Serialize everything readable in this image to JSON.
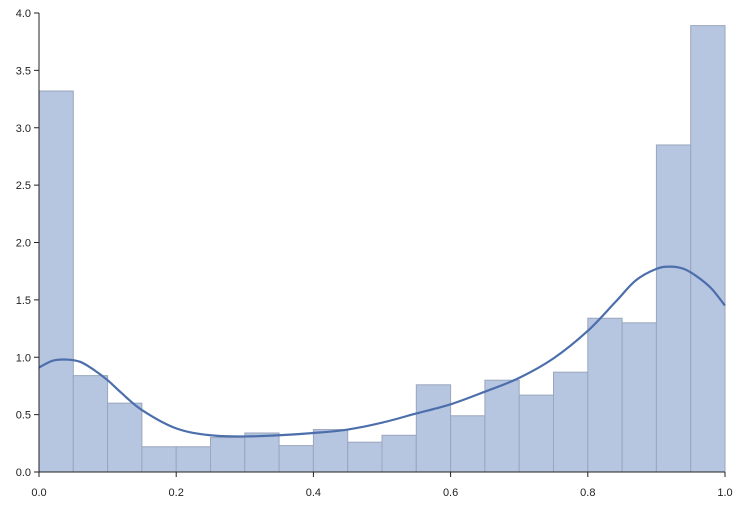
{
  "chart_data": {
    "type": "bar",
    "subtype": "histogram-with-density-curve",
    "title": "",
    "xlabel": "",
    "ylabel": "",
    "xlim": [
      0.0,
      1.0
    ],
    "ylim": [
      0.0,
      4.0
    ],
    "grid": false,
    "legend": "none",
    "colors": {
      "bar_fill": "#b6c5e0",
      "bar_edge": "#9aa6bd",
      "curve": "#4c6fac",
      "axis": "#222222"
    },
    "x_ticks": [
      "0.0",
      "0.2",
      "0.4",
      "0.6",
      "0.8",
      "1.0"
    ],
    "y_ticks": [
      "0.0",
      "0.5",
      "1.0",
      "1.5",
      "2.0",
      "2.5",
      "3.0",
      "3.5",
      "4.0"
    ],
    "bins": [
      {
        "start": 0.0,
        "end": 0.05,
        "value": 3.32
      },
      {
        "start": 0.05,
        "end": 0.1,
        "value": 0.84
      },
      {
        "start": 0.1,
        "end": 0.15,
        "value": 0.6
      },
      {
        "start": 0.15,
        "end": 0.2,
        "value": 0.22
      },
      {
        "start": 0.2,
        "end": 0.25,
        "value": 0.22
      },
      {
        "start": 0.25,
        "end": 0.3,
        "value": 0.3
      },
      {
        "start": 0.3,
        "end": 0.35,
        "value": 0.34
      },
      {
        "start": 0.35,
        "end": 0.4,
        "value": 0.23
      },
      {
        "start": 0.4,
        "end": 0.45,
        "value": 0.37
      },
      {
        "start": 0.45,
        "end": 0.5,
        "value": 0.26
      },
      {
        "start": 0.5,
        "end": 0.55,
        "value": 0.32
      },
      {
        "start": 0.55,
        "end": 0.6,
        "value": 0.76
      },
      {
        "start": 0.6,
        "end": 0.65,
        "value": 0.49
      },
      {
        "start": 0.65,
        "end": 0.7,
        "value": 0.8
      },
      {
        "start": 0.7,
        "end": 0.75,
        "value": 0.67
      },
      {
        "start": 0.75,
        "end": 0.8,
        "value": 0.87
      },
      {
        "start": 0.8,
        "end": 0.85,
        "value": 1.34
      },
      {
        "start": 0.85,
        "end": 0.9,
        "value": 1.3
      },
      {
        "start": 0.9,
        "end": 0.95,
        "value": 2.85
      },
      {
        "start": 0.95,
        "end": 1.0,
        "value": 3.89
      }
    ],
    "density_curve": {
      "x": [
        0.0,
        0.02,
        0.04,
        0.06,
        0.08,
        0.1,
        0.12,
        0.15,
        0.2,
        0.25,
        0.3,
        0.35,
        0.4,
        0.45,
        0.5,
        0.55,
        0.6,
        0.65,
        0.7,
        0.75,
        0.8,
        0.84,
        0.87,
        0.9,
        0.92,
        0.94,
        0.96,
        0.98,
        1.0
      ],
      "y": [
        0.91,
        0.97,
        0.98,
        0.96,
        0.89,
        0.8,
        0.69,
        0.54,
        0.38,
        0.32,
        0.31,
        0.32,
        0.34,
        0.37,
        0.43,
        0.51,
        0.59,
        0.7,
        0.82,
        0.99,
        1.23,
        1.48,
        1.67,
        1.77,
        1.79,
        1.77,
        1.7,
        1.6,
        1.45
      ]
    }
  }
}
